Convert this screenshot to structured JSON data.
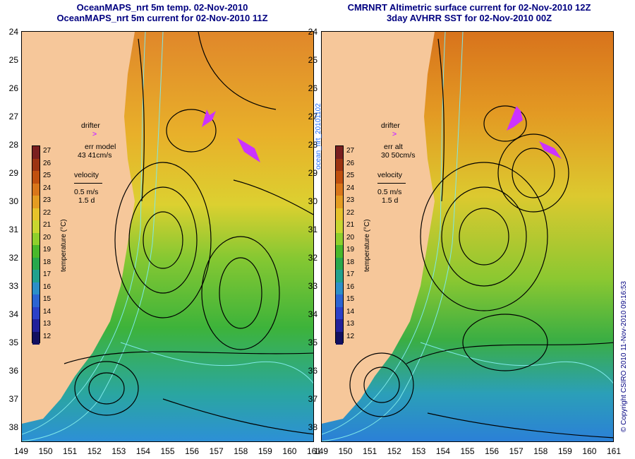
{
  "left": {
    "title1": "OceanMAPS_nrt 5m temp. 02-Nov-2010",
    "title2": "OceanMAPS_nrt 5m current for 02-Nov-2010 11Z",
    "drifter_label": "drifter",
    "drifter_symbol": ">",
    "err_label": "err model",
    "err_value": "43 41cm/s",
    "velocity_label": "velocity",
    "velocity_scale": "0.5 m/s",
    "velocity_days": "1.5 d",
    "colorbar_label": "temperature (°C)"
  },
  "right": {
    "title1": "CMRNRT Altimetric surface current for 02-Nov-2010 12Z",
    "title2": "3day AVHRR SST for 02-Nov-2010 00Z",
    "drifter_label": "drifter",
    "drifter_symbol": ">",
    "err_label": "err alt",
    "err_value": "30 50cm/s",
    "velocity_label": "velocity",
    "velocity_scale": "0.5 m/s",
    "velocity_days": "1.5 d",
    "colorbar_label": "temperature (°C)"
  },
  "map_data": {
    "lat_labels": [
      "24",
      "25",
      "26",
      "27",
      "28",
      "29",
      "30",
      "31",
      "32",
      "33",
      "34",
      "35",
      "36",
      "37",
      "38"
    ],
    "lon_labels": [
      "149",
      "150",
      "151",
      "152",
      "153",
      "154",
      "155",
      "156",
      "157",
      "158",
      "159",
      "160",
      "161"
    ],
    "colorbar_ticks": [
      "27",
      "26",
      "25",
      "24",
      "23",
      "22",
      "21",
      "20",
      "19",
      "18",
      "17",
      "16",
      "15",
      "14",
      "13",
      "12"
    ],
    "colorbar_colors": [
      "#7a1f1f",
      "#9c3412",
      "#c0500f",
      "#d9761a",
      "#e49c21",
      "#e6c22a",
      "#c8d62f",
      "#8fcf2c",
      "#49b82b",
      "#28a84c",
      "#21a18e",
      "#2c8fc8",
      "#2c64d2",
      "#2b40c8",
      "#22209a",
      "#121060"
    ],
    "colors": {
      "land": "#f6c79a",
      "warm": "#e6902a",
      "mid": "#dccf30",
      "green": "#4fba34",
      "cool": "#2aa6a0",
      "cold": "#2d8fd8",
      "contour": "#7fe8e8",
      "drifter": "#cc33ff",
      "title": "#000080"
    }
  },
  "side_text": {
    "left_vertical": "ocean_nrt_20101102",
    "right_vertical": "© Copyright CSIRO 2010   11-Nov-2010 09:16:53"
  }
}
